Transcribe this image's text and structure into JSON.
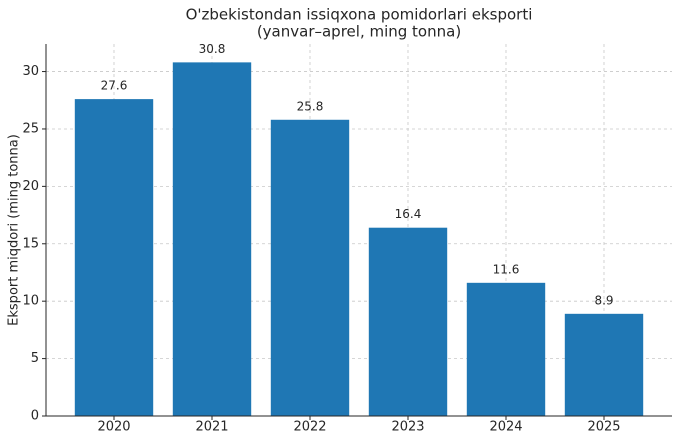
{
  "chart_data": {
    "type": "bar",
    "title": "O'zbekistondan issiqxona pomidorlari eksporti",
    "subtitle": "(yanvar–aprel, ming tonna)",
    "y_label": "Eksport miqdori (ming tonna)",
    "categories": [
      "2020",
      "2021",
      "2022",
      "2023",
      "2024",
      "2025"
    ],
    "values": [
      27.6,
      30.8,
      25.8,
      16.4,
      11.6,
      8.9
    ],
    "color": "#1f77b4",
    "ylim": [
      0,
      32.4
    ],
    "yticks": [
      0,
      5,
      10,
      15,
      20,
      25,
      30
    ],
    "grid": true
  }
}
